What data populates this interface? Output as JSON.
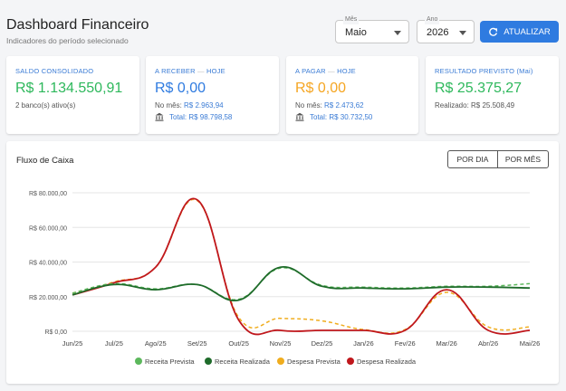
{
  "header": {
    "title": "Dashboard Financeiro",
    "subtitle": "Indicadores do período selecionado",
    "month": {
      "label": "Mês",
      "value": "Maio"
    },
    "year": {
      "label": "Ano",
      "value": "2026"
    },
    "update_button": "ATUALIZAR"
  },
  "cards": {
    "saldo": {
      "label": "SALDO CONSOLIDADO",
      "value": "R$ 1.134.550,91",
      "line1": "2 banco(s) ativo(s)"
    },
    "receber": {
      "label": "A RECEBER",
      "sep": "—",
      "label2": "HOJE",
      "value": "R$ 0,00",
      "line1_label": "No mês:",
      "line1_value": "R$ 2.963,94",
      "line2": "Total: R$ 98.798,58"
    },
    "pagar": {
      "label": "A PAGAR",
      "sep": "—",
      "label2": "HOJE",
      "value": "R$ 0,00",
      "line1_label": "No mês:",
      "line1_value": "R$ 2.473,62",
      "line2": "Total: R$ 30.732,50"
    },
    "resultado": {
      "label": "RESULTADO PREVISTO (Mai)",
      "value": "R$ 25.375,27",
      "line1": "Realizado: R$ 25.508,49"
    }
  },
  "chart_section": {
    "title": "Fluxo de Caixa",
    "toggle_day": "POR DIA",
    "toggle_month": "POR MÊS"
  },
  "colors": {
    "receita_prevista": "#5cb85c",
    "receita_realizada": "#1e6b2a",
    "despesa_prevista": "#f0ad1e",
    "despesa_realizada": "#c0171c",
    "accent": "#2f7be0"
  },
  "chart_data": {
    "type": "line",
    "categories": [
      "Jun/25",
      "Jul/25",
      "Ago/25",
      "Set/25",
      "Out/25",
      "Nov/25",
      "Dez/25",
      "Jan/26",
      "Fev/26",
      "Mar/26",
      "Abr/26",
      "Mai/26"
    ],
    "y_ticks": [
      "R$ 0,00",
      "R$ 20.000,00",
      "R$ 40.000,00",
      "R$ 60.000,00",
      "R$ 80.000,00"
    ],
    "ylim": [
      0,
      80000
    ],
    "legend_position": "bottom",
    "series": [
      {
        "name": "Receita Prevista",
        "style": "dashed",
        "values": [
          22000,
          27500,
          24500,
          27000,
          18500,
          36500,
          26500,
          25500,
          25000,
          26000,
          26000,
          27500
        ]
      },
      {
        "name": "Receita Realizada",
        "style": "solid",
        "values": [
          21000,
          27000,
          24000,
          27000,
          18000,
          37000,
          26000,
          25000,
          24500,
          25500,
          25500,
          25000
        ]
      },
      {
        "name": "Despesa Prevista",
        "style": "dashed",
        "values": [
          22000,
          28500,
          37000,
          75500,
          8000,
          7500,
          6000,
          1000,
          1000,
          22500,
          2500,
          2500
        ]
      },
      {
        "name": "Despesa Realizada",
        "style": "solid",
        "values": [
          21000,
          28000,
          37000,
          76000,
          6500,
          500,
          500,
          500,
          500,
          24000,
          500,
          500
        ]
      }
    ]
  }
}
